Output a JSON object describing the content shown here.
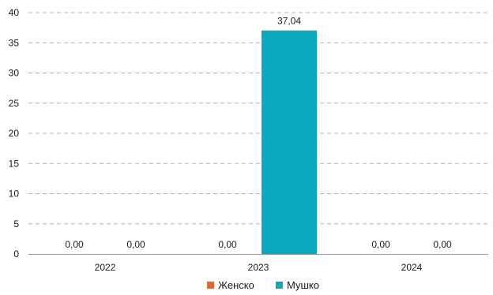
{
  "chart_data": {
    "type": "bar",
    "title": "",
    "xlabel": "",
    "ylabel": "",
    "categories": [
      "2022",
      "2023",
      "2024"
    ],
    "series": [
      {
        "name": "Женско",
        "color": "#e8672a",
        "values": [
          0,
          0,
          0
        ],
        "labels": [
          "0,00",
          "0,00",
          "0,00"
        ]
      },
      {
        "name": "Мушко",
        "color": "#0aa9bd",
        "values": [
          0,
          37.04,
          0
        ],
        "labels": [
          "0,00",
          "37,04",
          "0,00"
        ]
      }
    ],
    "ylim": [
      0,
      40
    ],
    "yticks": [
      0,
      5,
      10,
      15,
      20,
      25,
      30,
      35,
      40
    ],
    "grid": true,
    "legend_position": "bottom"
  }
}
